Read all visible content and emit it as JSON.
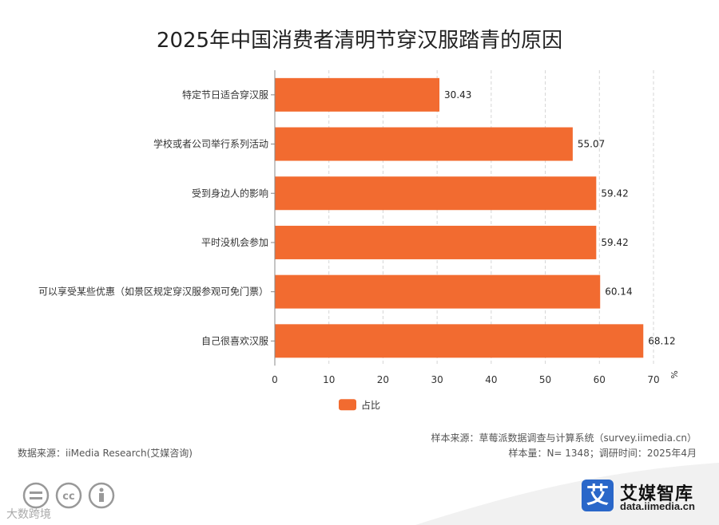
{
  "chart_data": {
    "type": "bar",
    "orientation": "horizontal",
    "title": "2025年中国消费者清明节穿汉服踏青的原因",
    "categories": [
      "特定节日适合穿汉服",
      "学校或者公司举行系列活动",
      "受到身边人的影响",
      "平时没机会参加",
      "可以享受某些优惠（如景区规定穿汉服参观可免门票）",
      "自己很喜欢汉服"
    ],
    "series": [
      {
        "name": "占比",
        "values": [
          30.43,
          55.07,
          59.42,
          59.42,
          60.14,
          68.12
        ]
      }
    ],
    "xlim": [
      0,
      70
    ],
    "xticks": [
      0,
      10,
      20,
      30,
      40,
      50,
      60,
      70
    ],
    "unit": "%",
    "grid": "vertical dashed",
    "legend": "bottom-left",
    "bar_color": "#f26b30"
  },
  "footer": {
    "data_source": "数据来源：iiMedia Research(艾媒咨询)",
    "sample_source": "样本来源：草莓派数据调查与计算系统（survey.iimedia.cn）",
    "sample_info": "样本量：N= 1348；调研时间：2025年4月"
  },
  "brand": {
    "logo_glyph": "艾",
    "name": "艾媒智库",
    "url": "data.iimedia.cn",
    "color": "#2a67c9"
  },
  "watermark": "大数跨境",
  "icons": [
    "cc-equal-icon",
    "cc-icon",
    "cc-by-icon"
  ]
}
